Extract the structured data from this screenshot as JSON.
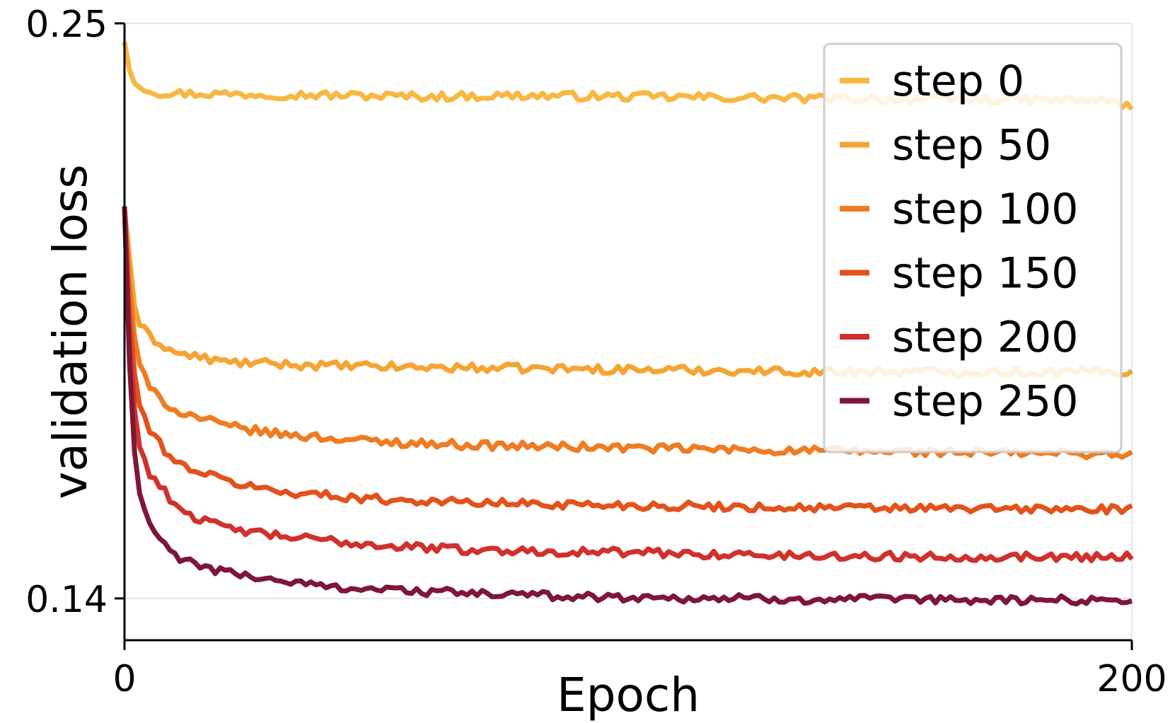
{
  "chart_data": {
    "type": "line",
    "xlabel": "Epoch",
    "ylabel": "validation loss",
    "xlim": [
      0,
      200
    ],
    "ylim": [
      0.132,
      0.25
    ],
    "xticks": [
      0,
      200
    ],
    "xtick_labels": [
      "0",
      "200"
    ],
    "yticks": [
      0.14,
      0.25
    ],
    "ytick_labels": [
      "0.14",
      "0.25"
    ],
    "grid": "horizontal at y ticks",
    "legend_position": "top-right",
    "series": [
      {
        "name": "step 0",
        "color": "#f8b740",
        "key": [
          [
            0,
            0.2465
          ],
          [
            1,
            0.241
          ],
          [
            2,
            0.2385
          ],
          [
            4,
            0.2377
          ],
          [
            6,
            0.2368
          ],
          [
            10,
            0.2366
          ],
          [
            30,
            0.2364
          ],
          [
            60,
            0.236
          ],
          [
            80,
            0.2362
          ],
          [
            100,
            0.236
          ],
          [
            120,
            0.2358
          ],
          [
            140,
            0.2356
          ],
          [
            160,
            0.2354
          ],
          [
            180,
            0.2354
          ],
          [
            195,
            0.2352
          ],
          [
            198,
            0.2345
          ],
          [
            200,
            0.2338
          ]
        ]
      },
      {
        "name": "step 50",
        "color": "#f5a433",
        "key": [
          [
            0,
            0.2145
          ],
          [
            1,
            0.205
          ],
          [
            2,
            0.196
          ],
          [
            3,
            0.1925
          ],
          [
            5,
            0.19
          ],
          [
            10,
            0.187
          ],
          [
            20,
            0.1852
          ],
          [
            40,
            0.1845
          ],
          [
            60,
            0.1842
          ],
          [
            80,
            0.184
          ],
          [
            100,
            0.1838
          ],
          [
            120,
            0.1836
          ],
          [
            140,
            0.1833
          ],
          [
            160,
            0.1834
          ],
          [
            180,
            0.1833
          ],
          [
            200,
            0.1834
          ]
        ]
      },
      {
        "name": "step 100",
        "color": "#ef7c22",
        "key": [
          [
            0,
            0.2145
          ],
          [
            1,
            0.2
          ],
          [
            2,
            0.19
          ],
          [
            3,
            0.185
          ],
          [
            5,
            0.18
          ],
          [
            10,
            0.176
          ],
          [
            20,
            0.173
          ],
          [
            30,
            0.1715
          ],
          [
            50,
            0.17
          ],
          [
            70,
            0.1693
          ],
          [
            100,
            0.1688
          ],
          [
            130,
            0.1683
          ],
          [
            160,
            0.168
          ],
          [
            180,
            0.1678
          ],
          [
            200,
            0.1676
          ]
        ]
      },
      {
        "name": "step 150",
        "color": "#e3521c",
        "key": [
          [
            0,
            0.2145
          ],
          [
            1,
            0.195
          ],
          [
            2,
            0.183
          ],
          [
            3,
            0.177
          ],
          [
            5,
            0.172
          ],
          [
            10,
            0.166
          ],
          [
            20,
            0.1625
          ],
          [
            30,
            0.1605
          ],
          [
            50,
            0.159
          ],
          [
            70,
            0.1583
          ],
          [
            100,
            0.1578
          ],
          [
            130,
            0.1574
          ],
          [
            160,
            0.1572
          ],
          [
            180,
            0.1571
          ],
          [
            200,
            0.157
          ]
        ]
      },
      {
        "name": "step 200",
        "color": "#d0312d",
        "key": [
          [
            0,
            0.2145
          ],
          [
            1,
            0.19
          ],
          [
            2,
            0.176
          ],
          [
            3,
            0.169
          ],
          [
            5,
            0.164
          ],
          [
            10,
            0.158
          ],
          [
            15,
            0.155
          ],
          [
            20,
            0.1535
          ],
          [
            30,
            0.152
          ],
          [
            50,
            0.1502
          ],
          [
            70,
            0.1492
          ],
          [
            100,
            0.1488
          ],
          [
            130,
            0.1482
          ],
          [
            160,
            0.148
          ],
          [
            180,
            0.148
          ],
          [
            200,
            0.148
          ]
        ]
      },
      {
        "name": "step 250",
        "color": "#7e1736",
        "key": [
          [
            0,
            0.215
          ],
          [
            1,
            0.185
          ],
          [
            2,
            0.168
          ],
          [
            3,
            0.16
          ],
          [
            5,
            0.154
          ],
          [
            8,
            0.15
          ],
          [
            12,
            0.147
          ],
          [
            20,
            0.145
          ],
          [
            30,
            0.1435
          ],
          [
            40,
            0.1423
          ],
          [
            60,
            0.1413
          ],
          [
            80,
            0.1406
          ],
          [
            100,
            0.1402
          ],
          [
            130,
            0.1399
          ],
          [
            160,
            0.1397
          ],
          [
            180,
            0.1397
          ],
          [
            200,
            0.1397
          ]
        ]
      }
    ]
  }
}
